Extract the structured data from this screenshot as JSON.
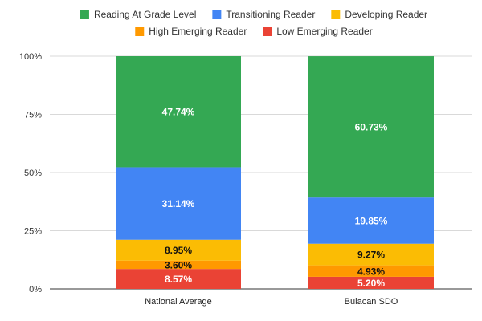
{
  "chart_data": {
    "type": "bar",
    "stacked": true,
    "categories": [
      "National Average",
      "Bulacan SDO"
    ],
    "series": [
      {
        "name": "Low Emerging Reader",
        "color": "#ea4335",
        "values": [
          8.57,
          5.2
        ],
        "labels": [
          "8.57%",
          "5.20%"
        ],
        "label_color": "#ffffff"
      },
      {
        "name": "High Emerging Reader",
        "color": "#ff9900",
        "values": [
          3.6,
          4.93
        ],
        "labels": [
          "3.60%",
          "4.93%"
        ],
        "label_color": "#111111"
      },
      {
        "name": "Developing Reader",
        "color": "#fbbc04",
        "values": [
          8.95,
          9.27
        ],
        "labels": [
          "8.95%",
          "9.27%"
        ],
        "label_color": "#111111"
      },
      {
        "name": "Transitioning Reader",
        "color": "#4285f4",
        "values": [
          31.14,
          19.85
        ],
        "labels": [
          "31.14%",
          "19.85%"
        ],
        "label_color": "#ffffff"
      },
      {
        "name": "Reading At Grade Level",
        "color": "#34a853",
        "values": [
          47.74,
          60.73
        ],
        "labels": [
          "47.74%",
          "60.73%"
        ],
        "label_color": "#ffffff"
      }
    ],
    "legend_order": [
      "Reading At Grade Level",
      "Transitioning Reader",
      "Developing Reader",
      "High Emerging Reader",
      "Low Emerging Reader"
    ],
    "y_ticks": [
      "0%",
      "25%",
      "50%",
      "75%",
      "100%"
    ],
    "ylim": [
      0,
      100
    ],
    "legend_position": "top",
    "grid": true
  }
}
